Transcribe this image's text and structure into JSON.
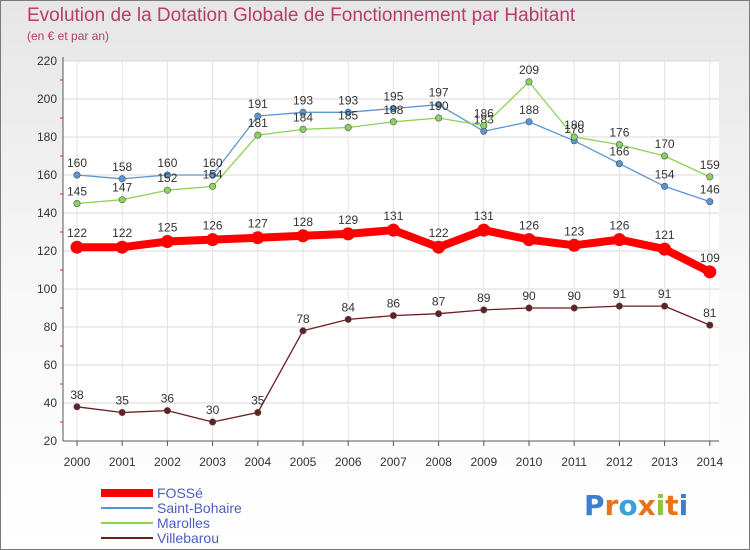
{
  "chart_data": {
    "type": "line",
    "title": "Evolution de la Dotation Globale de Fonctionnement par Habitant",
    "subtitle": "(en € et par an)",
    "xlabel": "",
    "ylabel": "",
    "ylim": [
      20,
      220
    ],
    "yticks": [
      20,
      40,
      60,
      80,
      100,
      120,
      140,
      160,
      180,
      200,
      220
    ],
    "categories": [
      "2000",
      "2001",
      "2002",
      "2003",
      "2004",
      "2005",
      "2006",
      "2007",
      "2008",
      "2009",
      "2010",
      "2011",
      "2012",
      "2013",
      "2014"
    ],
    "series": [
      {
        "name": "FOSSé",
        "color": "#ff0000",
        "values": [
          122,
          122,
          125,
          126,
          127,
          128,
          129,
          131,
          122,
          131,
          126,
          123,
          126,
          121,
          109
        ]
      },
      {
        "name": "Saint-Bohaire",
        "color": "#5a97d0",
        "values": [
          160,
          158,
          160,
          160,
          191,
          193,
          193,
          195,
          197,
          183,
          188,
          178,
          166,
          154,
          146
        ]
      },
      {
        "name": "Marolles",
        "color": "#8bd257",
        "values": [
          145,
          147,
          152,
          154,
          181,
          184,
          185,
          188,
          190,
          186,
          209,
          180,
          176,
          170,
          159
        ]
      },
      {
        "name": "Villebarou",
        "color": "#6a1f1f",
        "values": [
          38,
          35,
          36,
          30,
          35,
          78,
          84,
          86,
          87,
          89,
          90,
          90,
          91,
          91,
          81
        ]
      }
    ]
  },
  "logo": {
    "text": "Proxiti",
    "colors": [
      "#3a7fd0",
      "#e8741a",
      "#3aa0d8",
      "#e8741a",
      "#8cc63f",
      "#e8741a",
      "#3a7fd0"
    ]
  }
}
